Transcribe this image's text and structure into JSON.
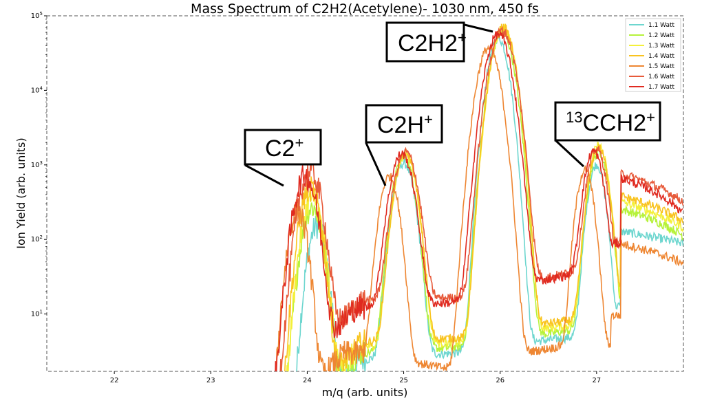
{
  "chart_data": {
    "type": "line",
    "title": "Mass Spectrum of C2H2(Acetylene)- 1030 nm, 450 fs",
    "xlabel": "m/q (arb. units)",
    "ylabel": "Ion Yield (arb. units)",
    "xlim": [
      21.3,
      27.9
    ],
    "ylim": [
      1.7,
      100000
    ],
    "yscale": "log",
    "grid": false,
    "legend_position": "top-right",
    "x_ticks": [
      "22",
      "23",
      "24",
      "25",
      "26",
      "27"
    ],
    "y_ticks": [
      {
        "base": "10",
        "exp": "1"
      },
      {
        "base": "10",
        "exp": "2"
      },
      {
        "base": "10",
        "exp": "3"
      },
      {
        "base": "10",
        "exp": "4"
      },
      {
        "base": "10",
        "exp": "5"
      }
    ],
    "series": [
      {
        "name": "1.1 Watt",
        "color": "#6dd6cf",
        "noise_start": 23.5,
        "peaks": [
          [
            24.1,
            150,
            0.1
          ],
          [
            25.0,
            1050,
            0.11
          ],
          [
            25.98,
            50000,
            0.11
          ],
          [
            27.0,
            1000,
            0.09
          ]
        ],
        "dips": [
          [
            24.55,
            4
          ],
          [
            25.55,
            5
          ],
          [
            26.7,
            8
          ]
        ],
        "tail": [
          80,
          55
        ]
      },
      {
        "name": "1.2 Watt",
        "color": "#b6f23a",
        "noise_start": 23.4,
        "peaks": [
          [
            24.05,
            270,
            0.11
          ],
          [
            25.0,
            1300,
            0.11
          ],
          [
            26.02,
            60000,
            0.12
          ],
          [
            27.02,
            1500,
            0.1
          ]
        ],
        "dips": [
          [
            24.55,
            5
          ],
          [
            25.6,
            6
          ],
          [
            26.75,
            10
          ]
        ],
        "tail": [
          160,
          70
        ]
      },
      {
        "name": "1.3 Watt",
        "color": "#f4f03a",
        "noise_start": 23.3,
        "peaks": [
          [
            24.05,
            350,
            0.11
          ],
          [
            25.02,
            1400,
            0.11
          ],
          [
            26.03,
            68000,
            0.12
          ],
          [
            27.02,
            1800,
            0.1
          ]
        ],
        "dips": [
          [
            24.55,
            6
          ],
          [
            25.62,
            7
          ],
          [
            26.78,
            12
          ]
        ],
        "tail": [
          200,
          90
        ]
      },
      {
        "name": "1.4 Watt",
        "color": "#f9c31f",
        "noise_start": 23.2,
        "peaks": [
          [
            24.03,
            480,
            0.11
          ],
          [
            25.02,
            1450,
            0.11
          ],
          [
            26.03,
            70000,
            0.12
          ],
          [
            27.02,
            1700,
            0.1
          ]
        ],
        "dips": [
          [
            24.57,
            7
          ],
          [
            25.65,
            8
          ],
          [
            26.8,
            14
          ]
        ],
        "tail": [
          240,
          110
        ]
      },
      {
        "name": "1.5 Watt",
        "color": "#ee8632",
        "noise_start": 23.3,
        "peaks": [
          [
            23.9,
            240,
            0.1
          ],
          [
            24.85,
            700,
            0.1
          ],
          [
            25.88,
            37000,
            0.12
          ],
          [
            26.88,
            850,
            0.09
          ]
        ],
        "dips": [
          [
            24.38,
            5
          ],
          [
            25.5,
            3
          ],
          [
            26.6,
            6
          ]
        ],
        "tail": [
          55,
          30
        ]
      },
      {
        "name": "1.6 Watt",
        "color": "#e75a3a",
        "noise_start": 22.5,
        "peaks": [
          [
            24.03,
            820,
            0.12
          ],
          [
            25.02,
            1480,
            0.12
          ],
          [
            26.02,
            63000,
            0.13
          ],
          [
            27.0,
            1600,
            0.1
          ]
        ],
        "dips": [
          [
            24.55,
            25
          ],
          [
            25.65,
            28
          ],
          [
            26.75,
            60
          ]
        ],
        "tail": [
          480,
          200
        ]
      },
      {
        "name": "1.7 Watt",
        "color": "#e02a20",
        "noise_start": 22.3,
        "peaks": [
          [
            23.98,
            700,
            0.12
          ],
          [
            24.98,
            1400,
            0.12
          ],
          [
            25.98,
            57000,
            0.13
          ],
          [
            26.97,
            1500,
            0.1
          ]
        ],
        "dips": [
          [
            24.5,
            20
          ],
          [
            25.6,
            24
          ],
          [
            26.72,
            55
          ]
        ],
        "tail": [
          420,
          140
        ]
      }
    ],
    "annotations": [
      {
        "id": "c2",
        "text": "C2",
        "sup": "+",
        "pre": ""
      },
      {
        "id": "c2h",
        "text": "C2H",
        "sup": "+",
        "pre": ""
      },
      {
        "id": "c2h2",
        "text": "C2H2",
        "sup": "+",
        "pre": ""
      },
      {
        "id": "c13",
        "text": "CCH2",
        "sup": "+",
        "pre": "13"
      }
    ]
  }
}
